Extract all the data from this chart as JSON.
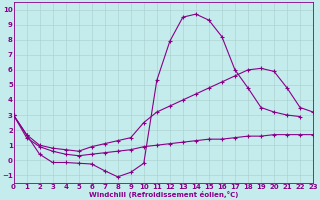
{
  "xlabel": "Windchill (Refroidissement éolien,°C)",
  "background_color": "#c5eced",
  "grid_color": "#aacccc",
  "line_color": "#880088",
  "xlim": [
    0,
    23
  ],
  "ylim": [
    -1.5,
    10.5
  ],
  "xticks": [
    0,
    1,
    2,
    3,
    4,
    5,
    6,
    7,
    8,
    9,
    10,
    11,
    12,
    13,
    14,
    15,
    16,
    17,
    18,
    19,
    20,
    21,
    22,
    23
  ],
  "yticks": [
    -1,
    0,
    1,
    2,
    3,
    4,
    5,
    6,
    7,
    8,
    9,
    10
  ],
  "line1_x": [
    0,
    1,
    2,
    3,
    4,
    5,
    6,
    7,
    8,
    9,
    10,
    11,
    12,
    13,
    14,
    15,
    16,
    17,
    18,
    19,
    20,
    21,
    22
  ],
  "line1_y": [
    3.0,
    1.7,
    0.4,
    -0.15,
    -0.15,
    -0.2,
    -0.25,
    -0.7,
    -1.1,
    -0.8,
    -0.2,
    5.3,
    7.9,
    9.5,
    9.7,
    9.3,
    8.2,
    6.0,
    4.8,
    3.5,
    3.2,
    3.0,
    2.9
  ],
  "line2_x": [
    0,
    1,
    2,
    3,
    4,
    5,
    6,
    7,
    8,
    9,
    10,
    11,
    12,
    13,
    14,
    15,
    16,
    17,
    18,
    19,
    20,
    21,
    22,
    23
  ],
  "line2_y": [
    3.0,
    1.7,
    1.0,
    0.8,
    0.7,
    0.6,
    0.9,
    1.1,
    1.3,
    1.5,
    2.5,
    3.2,
    3.6,
    4.0,
    4.4,
    4.8,
    5.2,
    5.6,
    6.0,
    6.1,
    5.9,
    4.8,
    3.5,
    3.2
  ],
  "line3_x": [
    0,
    1,
    2,
    3,
    4,
    5,
    6,
    7,
    8,
    9,
    10,
    11,
    12,
    13,
    14,
    15,
    16,
    17,
    18,
    19,
    20,
    21,
    22,
    23
  ],
  "line3_y": [
    3.0,
    1.5,
    0.9,
    0.6,
    0.4,
    0.3,
    0.4,
    0.5,
    0.6,
    0.7,
    0.9,
    1.0,
    1.1,
    1.2,
    1.3,
    1.4,
    1.4,
    1.5,
    1.6,
    1.6,
    1.7,
    1.7,
    1.7,
    1.7
  ],
  "marker": "+",
  "markersize": 3,
  "linewidth": 0.8,
  "tick_fontsize": 5,
  "xlabel_fontsize": 5
}
